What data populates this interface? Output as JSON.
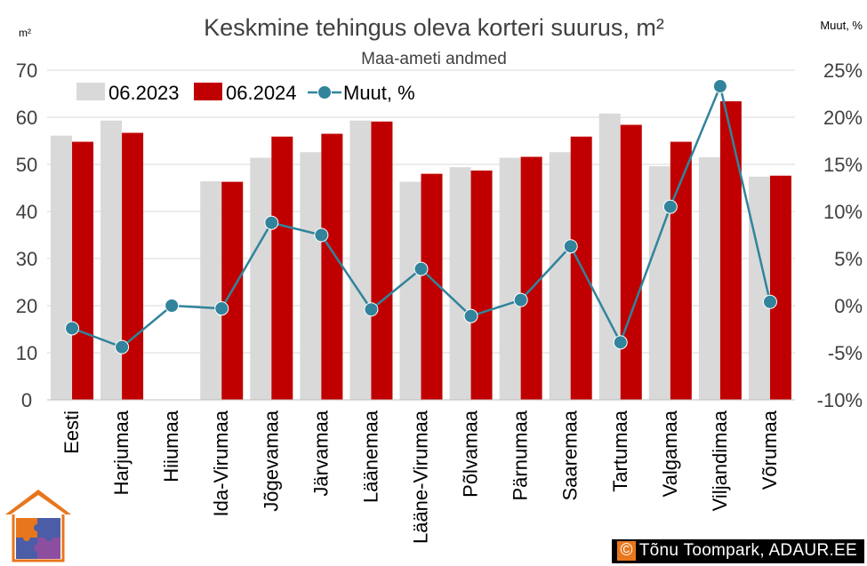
{
  "chart_data": {
    "type": "bar",
    "title": "Keskmine tehingus oleva korteri suurus, m²",
    "subtitle": "Maa-ameti andmed",
    "y_left_unit": "m²",
    "y_right_unit": "Muut, %",
    "categories": [
      "Eesti",
      "Harjumaa",
      "Hiiumaa",
      "Ida-Virumaa",
      "Jõgevamaa",
      "Järvamaa",
      "Läänemaa",
      "Lääne-Virumaa",
      "Põlvamaa",
      "Pärnumaa",
      "Saaremaa",
      "Tartumaa",
      "Valgamaa",
      "Viljandimaa",
      "Võrumaa"
    ],
    "y_left_lim": [
      0,
      70
    ],
    "y_left_ticks": [
      0,
      10,
      20,
      30,
      40,
      50,
      60,
      70
    ],
    "y_right_lim": [
      -10,
      25
    ],
    "y_right_ticks": [
      "-10%",
      "-5%",
      "0%",
      "5%",
      "10%",
      "15%",
      "20%",
      "25%"
    ],
    "grid": "horizontal",
    "legend_position": "top-left",
    "series": [
      {
        "name": "06.2023",
        "kind": "bar",
        "axis": "left",
        "color": "#d9d9d9",
        "values": [
          56.1,
          59.3,
          null,
          46.4,
          51.4,
          52.6,
          59.3,
          46.3,
          49.4,
          51.4,
          52.6,
          60.8,
          49.6,
          51.5,
          47.4
        ]
      },
      {
        "name": "06.2024",
        "kind": "bar",
        "axis": "left",
        "color": "#c00000",
        "values": [
          54.8,
          56.7,
          null,
          46.3,
          55.9,
          56.5,
          59.1,
          48.0,
          48.7,
          51.6,
          55.9,
          58.4,
          54.8,
          63.4,
          47.6
        ]
      },
      {
        "name": "Muut, %",
        "kind": "line",
        "axis": "right",
        "color": "#31849b",
        "values": [
          -2.4,
          -4.4,
          0.0,
          -0.3,
          8.8,
          7.5,
          -0.4,
          3.9,
          -1.1,
          0.6,
          6.3,
          -3.9,
          10.5,
          23.3,
          0.4
        ]
      }
    ]
  },
  "credit": {
    "symbol": "©",
    "text": "Tõnu Toompark, ADAUR.EE"
  },
  "colors": {
    "logo_roof": "#e8761c",
    "puzzle_orange": "#e8761c",
    "puzzle_blue": "#4a5da6",
    "puzzle_purple": "#8c4e9e"
  }
}
